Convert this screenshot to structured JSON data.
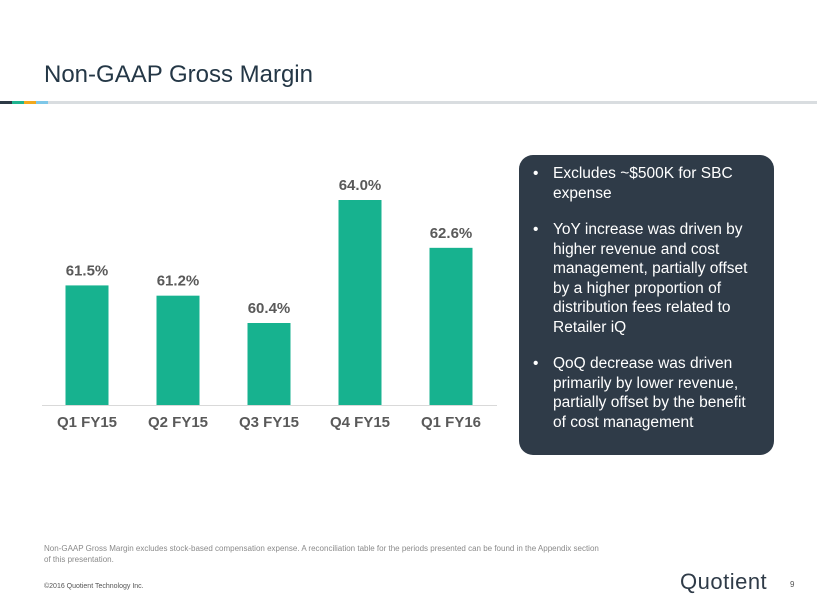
{
  "slide": {
    "title": "Non-GAAP Gross Margin",
    "footnote": "Non-GAAP Gross Margin excludes stock-based compensation expense. A reconciliation table for the periods presented can be found in the Appendix section of this presentation.",
    "copyright": "©2016 Quotient Technology Inc.",
    "logo": "Quotient",
    "page_number": "9"
  },
  "callout": {
    "bullet": "•",
    "items": [
      "Excludes ~$500K for SBC expense",
      "YoY increase was driven by higher revenue and cost management, partially offset by a higher proportion of distribution fees related to Retailer iQ",
      "QoQ decrease was driven primarily by lower revenue, partially offset by the benefit of cost management"
    ]
  },
  "chart_data": {
    "type": "bar",
    "categories": [
      "Q1 FY15",
      "Q2 FY15",
      "Q3 FY15",
      "Q4 FY15",
      "Q1 FY16"
    ],
    "values": [
      61.5,
      61.2,
      60.4,
      64.0,
      62.6
    ],
    "data_labels": [
      "61.5%",
      "61.2%",
      "60.4%",
      "64.0%",
      "62.6%"
    ],
    "ylim": [
      58.0,
      64.0
    ],
    "title": "",
    "xlabel": "",
    "ylabel": "",
    "grid": false,
    "bar_color": "#17b28f"
  }
}
